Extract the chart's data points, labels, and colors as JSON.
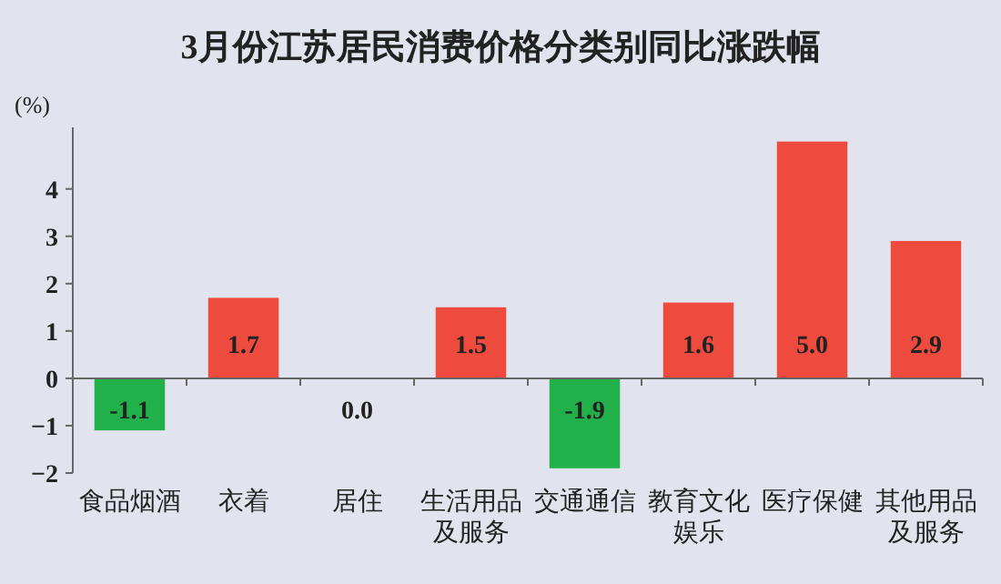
{
  "chart_data": {
    "type": "bar",
    "title": "3月份江苏居民消费价格分类别同比涨跌幅",
    "ylabel": "(%)",
    "categories": [
      "食品烟酒",
      "衣着",
      "居住",
      "生活用品及服务",
      "交通通信",
      "教育文化娱乐",
      "医疗保健",
      "其他用品及服务"
    ],
    "values": [
      -1.1,
      1.7,
      0.0,
      1.5,
      -1.9,
      1.6,
      5.0,
      2.9
    ],
    "value_labels": [
      "-1.1",
      "1.7",
      "0.0",
      "1.5",
      "-1.9",
      "1.6",
      "5.0",
      "2.9"
    ],
    "colors": [
      "#22b04b",
      "#ee4b3e",
      "#ee4b3e",
      "#ee4b3e",
      "#22b04b",
      "#ee4b3e",
      "#ee4b3e",
      "#ee4b3e"
    ],
    "ylim": [
      -2,
      5.3
    ],
    "yticks": [
      {
        "value": -2,
        "label": "−2"
      },
      {
        "value": -1,
        "label": "−1"
      },
      0,
      1,
      2,
      3,
      4
    ]
  }
}
